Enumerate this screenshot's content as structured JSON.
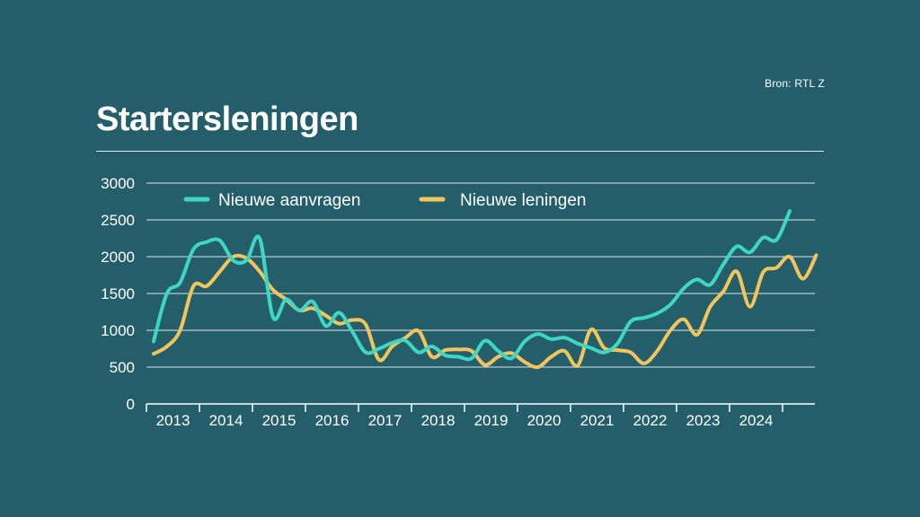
{
  "source": "Bron: RTL Z",
  "title": "Startersleningen",
  "colors": {
    "background": "#255e6b",
    "aanvragen": "#3fd7c4",
    "leningen": "#f2c55c",
    "grid": "#ffffff"
  },
  "chart_data": {
    "type": "line",
    "title": "Startersleningen",
    "xlabel": "",
    "ylabel": "",
    "ylim": [
      0,
      3000
    ],
    "yticks": [
      0,
      500,
      1000,
      1500,
      2000,
      2500,
      3000
    ],
    "ytick_labels": [
      "0",
      "500",
      "1000",
      "1500",
      "2000",
      "2500",
      "3000"
    ],
    "xticks": [
      "2013",
      "2014",
      "2015",
      "2016",
      "2017",
      "2018",
      "2019",
      "2020",
      "2021",
      "2022",
      "2023",
      "2024"
    ],
    "x_start": 2013,
    "x_step": 0.25,
    "legend": [
      "Nieuwe aanvragen",
      "Nieuwe leningen"
    ],
    "series": [
      {
        "name": "Nieuwe aanvragen",
        "values": [
          850,
          1500,
          1650,
          2100,
          2200,
          2220,
          1950,
          1950,
          2250,
          1180,
          1420,
          1270,
          1390,
          1060,
          1240,
          980,
          700,
          750,
          830,
          860,
          700,
          780,
          660,
          640,
          620,
          860,
          720,
          620,
          850,
          950,
          880,
          900,
          820,
          760,
          700,
          820,
          1120,
          1170,
          1230,
          1350,
          1570,
          1690,
          1620,
          1900,
          2140,
          2060,
          2260,
          2230,
          2620
        ]
      },
      {
        "name": "Nieuwe leningen",
        "values": [
          680,
          780,
          1000,
          1600,
          1600,
          1800,
          2000,
          1980,
          1800,
          1550,
          1420,
          1270,
          1300,
          1200,
          1090,
          1140,
          1080,
          600,
          780,
          900,
          990,
          640,
          730,
          740,
          720,
          530,
          640,
          690,
          570,
          500,
          640,
          720,
          520,
          1010,
          760,
          730,
          700,
          550,
          720,
          1000,
          1150,
          940,
          1320,
          1530,
          1800,
          1320,
          1790,
          1850,
          2000,
          1700,
          2020
        ]
      }
    ]
  }
}
